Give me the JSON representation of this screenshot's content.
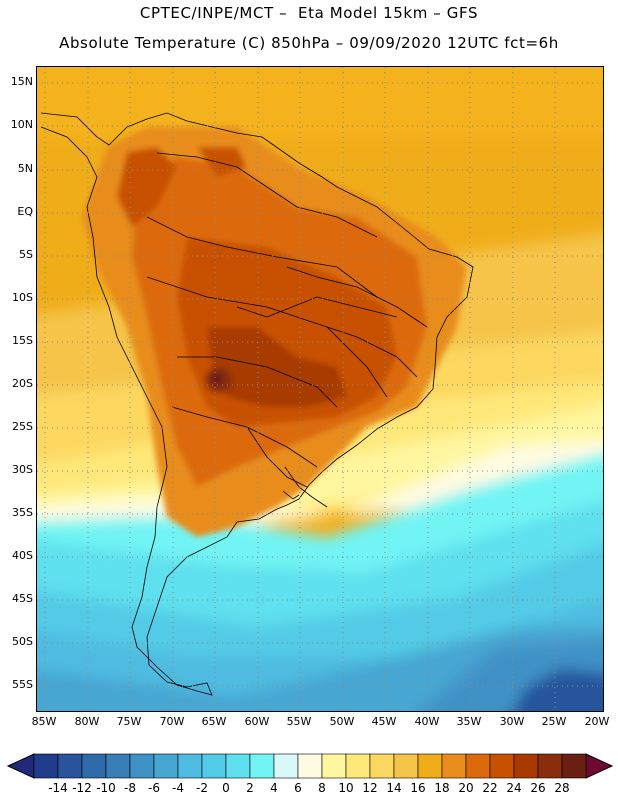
{
  "title": {
    "line1": "CPTEC/INPE/MCT –  Eta Model 15km – GFS",
    "line2": "Absolute Temperature (C) 850hPa – 09/09/2020 12UTC fct=6h"
  },
  "lat_labels": [
    "15N",
    "10N",
    "5N",
    "EQ",
    "5S",
    "10S",
    "15S",
    "20S",
    "25S",
    "30S",
    "35S",
    "40S",
    "45S",
    "50S",
    "55S"
  ],
  "lon_labels": [
    "85W",
    "80W",
    "75W",
    "70W",
    "65W",
    "60W",
    "55W",
    "50W",
    "45W",
    "40W",
    "35W",
    "30W",
    "25W",
    "20W"
  ],
  "colorbar": {
    "labels": [
      "-14",
      "-12",
      "-10",
      "-8",
      "-6",
      "-4",
      "-2",
      "0",
      "2",
      "4",
      "6",
      "8",
      "10",
      "12",
      "14",
      "16",
      "18",
      "20",
      "22",
      "24",
      "26",
      "28"
    ],
    "colors": [
      "#1f3d8c",
      "#28549c",
      "#2f6aa9",
      "#3a7eb8",
      "#3f92c6",
      "#47a6d2",
      "#4fbbe0",
      "#52cbe6",
      "#5fe0ee",
      "#72f4f4",
      "#d9f8fa",
      "#fffbe2",
      "#fff7a0",
      "#ffe87a",
      "#fcd860",
      "#f5c44a",
      "#f0ad1a",
      "#e88d1c",
      "#dc6a0c",
      "#c75100",
      "#a83a00",
      "#8a2d0c",
      "#6a1f12"
    ],
    "left_arrow": "#212a78",
    "right_arrow": "#6e0a32"
  }
}
